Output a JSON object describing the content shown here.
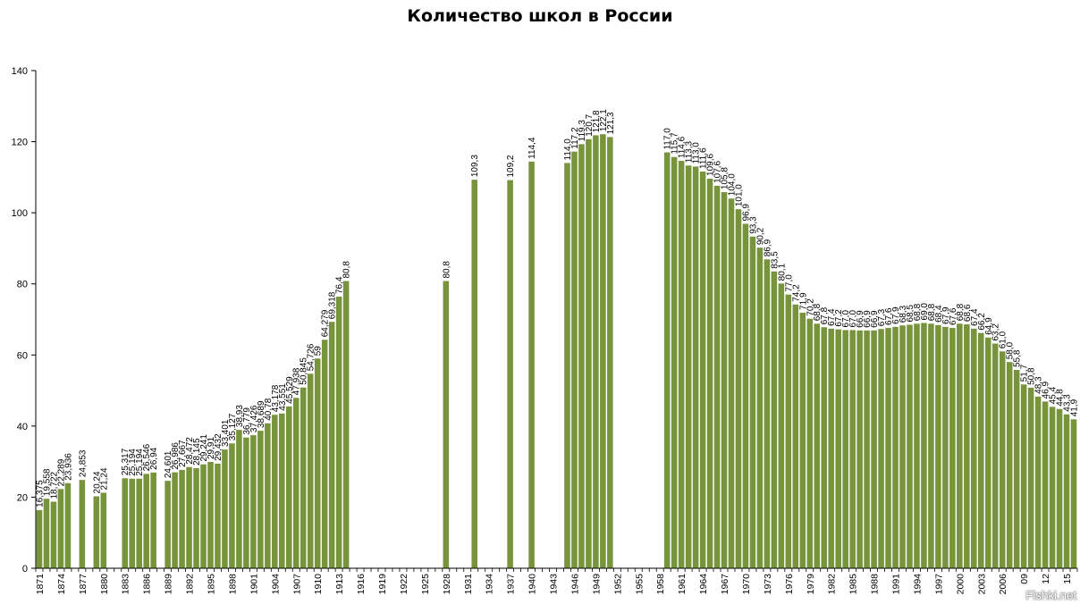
{
  "chart_data": {
    "type": "bar",
    "title": "Количество школ в России",
    "xlabel": "",
    "ylabel": "",
    "ylim": [
      0,
      140
    ],
    "yticks": [
      "0",
      "20",
      "40",
      "60",
      "80",
      "100",
      "120",
      "140"
    ],
    "ytick_values": [
      0,
      20,
      40,
      60,
      80,
      100,
      120,
      140
    ],
    "grid": false,
    "legend": "none",
    "bar_color": "#77933c",
    "xtick_labels": [
      "1871",
      "1874",
      "1877",
      "1880",
      "1883",
      "1886",
      "1889",
      "1892",
      "1895",
      "1898",
      "1901",
      "1904",
      "1907",
      "1910",
      "1913",
      "1916",
      "1919",
      "1922",
      "1925",
      "1928",
      "1931",
      "1934",
      "1937",
      "1940",
      "1943",
      "1946",
      "1949",
      "1952",
      "1955",
      "1958",
      "1961",
      "1964",
      "1967",
      "1970",
      "1973",
      "1976",
      "1979",
      "1982",
      "1985",
      "1988",
      "1991",
      "1994",
      "1997",
      "2000",
      "2003",
      "2006",
      "09",
      "12",
      "15"
    ],
    "xtick_years": [
      1871,
      1874,
      1877,
      1880,
      1883,
      1886,
      1889,
      1892,
      1895,
      1898,
      1901,
      1904,
      1907,
      1910,
      1913,
      1916,
      1919,
      1922,
      1925,
      1928,
      1931,
      1934,
      1937,
      1940,
      1943,
      1946,
      1949,
      1952,
      1955,
      1958,
      1961,
      1964,
      1967,
      1970,
      1973,
      1976,
      1979,
      1982,
      1985,
      1988,
      1991,
      1994,
      1997,
      2000,
      2003,
      2006,
      2009,
      2012,
      2015
    ],
    "first_year": 1871,
    "last_year": 2016,
    "points": [
      {
        "year": 1871,
        "value": 16.375,
        "label": "16,375"
      },
      {
        "year": 1872,
        "value": 19.558,
        "label": "19,558"
      },
      {
        "year": 1873,
        "value": 18.722,
        "label": "18,722"
      },
      {
        "year": 1874,
        "value": 22.289,
        "label": "22,289"
      },
      {
        "year": 1875,
        "value": 23.936,
        "label": "23,936"
      },
      {
        "year": 1877,
        "value": 24.853,
        "label": "24,853"
      },
      {
        "year": 1879,
        "value": 20.24,
        "label": "20,24"
      },
      {
        "year": 1880,
        "value": 21.24,
        "label": "21,24"
      },
      {
        "year": 1883,
        "value": 25.317,
        "label": "25,317"
      },
      {
        "year": 1884,
        "value": 25.194,
        "label": "25,194"
      },
      {
        "year": 1885,
        "value": 25.194,
        "label": "25,194"
      },
      {
        "year": 1886,
        "value": 26.546,
        "label": "26,546"
      },
      {
        "year": 1887,
        "value": 26.94,
        "label": "26,94"
      },
      {
        "year": 1889,
        "value": 24.601,
        "label": "24,601"
      },
      {
        "year": 1890,
        "value": 26.986,
        "label": "26,986"
      },
      {
        "year": 1891,
        "value": 27.667,
        "label": "27,667"
      },
      {
        "year": 1892,
        "value": 28.472,
        "label": "28,472"
      },
      {
        "year": 1893,
        "value": 28.145,
        "label": "28,145"
      },
      {
        "year": 1894,
        "value": 29.241,
        "label": "29,241"
      },
      {
        "year": 1895,
        "value": 29.91,
        "label": "29,91"
      },
      {
        "year": 1896,
        "value": 29.432,
        "label": "29,432"
      },
      {
        "year": 1897,
        "value": 33.401,
        "label": "33,401"
      },
      {
        "year": 1898,
        "value": 35.127,
        "label": "35,127"
      },
      {
        "year": 1899,
        "value": 38.93,
        "label": "38,93"
      },
      {
        "year": 1900,
        "value": 36.779,
        "label": "36,779"
      },
      {
        "year": 1901,
        "value": 37.426,
        "label": "37,426"
      },
      {
        "year": 1902,
        "value": 38.689,
        "label": "38,689"
      },
      {
        "year": 1903,
        "value": 40.78,
        "label": "40,78"
      },
      {
        "year": 1904,
        "value": 43.178,
        "label": "43,178"
      },
      {
        "year": 1905,
        "value": 43.551,
        "label": "43,551"
      },
      {
        "year": 1906,
        "value": 45.529,
        "label": "45,529"
      },
      {
        "year": 1907,
        "value": 47.938,
        "label": "47,938"
      },
      {
        "year": 1908,
        "value": 50.845,
        "label": "50,845"
      },
      {
        "year": 1909,
        "value": 54.726,
        "label": "54,726"
      },
      {
        "year": 1910,
        "value": 59,
        "label": "59"
      },
      {
        "year": 1911,
        "value": 64.279,
        "label": "64,279"
      },
      {
        "year": 1912,
        "value": 69.318,
        "label": "69,318"
      },
      {
        "year": 1913,
        "value": 76.4,
        "label": "76,4"
      },
      {
        "year": 1914,
        "value": 80.8,
        "label": "80,8"
      },
      {
        "year": 1928,
        "value": 80.8,
        "label": "80,8"
      },
      {
        "year": 1932,
        "value": 109.3,
        "label": "109,3"
      },
      {
        "year": 1937,
        "value": 109.2,
        "label": "109,2"
      },
      {
        "year": 1940,
        "value": 114.4,
        "label": "114,4"
      },
      {
        "year": 1945,
        "value": 114.0,
        "label": "114,0"
      },
      {
        "year": 1946,
        "value": 117.2,
        "label": "117,2"
      },
      {
        "year": 1947,
        "value": 119.3,
        "label": "119,3"
      },
      {
        "year": 1948,
        "value": 120.7,
        "label": "120,7"
      },
      {
        "year": 1949,
        "value": 121.8,
        "label": "121,8"
      },
      {
        "year": 1950,
        "value": 122.1,
        "label": "122,1"
      },
      {
        "year": 1951,
        "value": 121.3,
        "label": "121,3"
      },
      {
        "year": 1959,
        "value": 117.0,
        "label": "117,0"
      },
      {
        "year": 1960,
        "value": 115.7,
        "label": "115,7"
      },
      {
        "year": 1961,
        "value": 114.6,
        "label": "114,6"
      },
      {
        "year": 1962,
        "value": 113.3,
        "label": "113,3"
      },
      {
        "year": 1963,
        "value": 113.0,
        "label": "113,0"
      },
      {
        "year": 1964,
        "value": 111.6,
        "label": "111,6"
      },
      {
        "year": 1965,
        "value": 109.6,
        "label": "109,6"
      },
      {
        "year": 1966,
        "value": 107.6,
        "label": "107,6"
      },
      {
        "year": 1967,
        "value": 105.8,
        "label": "105,8"
      },
      {
        "year": 1968,
        "value": 104.0,
        "label": "104,0"
      },
      {
        "year": 1969,
        "value": 101.0,
        "label": "101,0"
      },
      {
        "year": 1970,
        "value": 96.9,
        "label": "96,9"
      },
      {
        "year": 1971,
        "value": 93.3,
        "label": "93,3"
      },
      {
        "year": 1972,
        "value": 90.2,
        "label": "90,2"
      },
      {
        "year": 1973,
        "value": 86.9,
        "label": "86,9"
      },
      {
        "year": 1974,
        "value": 83.5,
        "label": "83,5"
      },
      {
        "year": 1975,
        "value": 80.1,
        "label": "80,1"
      },
      {
        "year": 1976,
        "value": 77.0,
        "label": "77,0"
      },
      {
        "year": 1977,
        "value": 74.2,
        "label": "74,2"
      },
      {
        "year": 1978,
        "value": 71.9,
        "label": "71,9"
      },
      {
        "year": 1979,
        "value": 70.2,
        "label": "70,2"
      },
      {
        "year": 1980,
        "value": 68.8,
        "label": "68,8"
      },
      {
        "year": 1981,
        "value": 67.8,
        "label": "67,8"
      },
      {
        "year": 1982,
        "value": 67.4,
        "label": "67,4"
      },
      {
        "year": 1983,
        "value": 67.2,
        "label": "67,2"
      },
      {
        "year": 1984,
        "value": 67.0,
        "label": "67,0"
      },
      {
        "year": 1985,
        "value": 67.0,
        "label": "67,0"
      },
      {
        "year": 1986,
        "value": 66.9,
        "label": "66,9"
      },
      {
        "year": 1987,
        "value": 66.9,
        "label": "66,9"
      },
      {
        "year": 1988,
        "value": 66.9,
        "label": "66,9"
      },
      {
        "year": 1989,
        "value": 67.3,
        "label": "67,3"
      },
      {
        "year": 1990,
        "value": 67.6,
        "label": "67,6"
      },
      {
        "year": 1991,
        "value": 67.9,
        "label": "67,9"
      },
      {
        "year": 1992,
        "value": 68.3,
        "label": "68,3"
      },
      {
        "year": 1993,
        "value": 68.5,
        "label": "68,5"
      },
      {
        "year": 1994,
        "value": 68.8,
        "label": "68,8"
      },
      {
        "year": 1995,
        "value": 69.0,
        "label": "69,0"
      },
      {
        "year": 1996,
        "value": 68.8,
        "label": "68,8"
      },
      {
        "year": 1997,
        "value": 68.4,
        "label": "68,4"
      },
      {
        "year": 1998,
        "value": 67.9,
        "label": "67,9"
      },
      {
        "year": 1999,
        "value": 67.6,
        "label": "67,6"
      },
      {
        "year": 2000,
        "value": 68.8,
        "label": "68,8"
      },
      {
        "year": 2001,
        "value": 68.6,
        "label": "68,6"
      },
      {
        "year": 2002,
        "value": 67.4,
        "label": "67,4"
      },
      {
        "year": 2003,
        "value": 66.2,
        "label": "66,2"
      },
      {
        "year": 2004,
        "value": 64.9,
        "label": "64,9"
      },
      {
        "year": 2005,
        "value": 63.2,
        "label": "63,2"
      },
      {
        "year": 2006,
        "value": 61.0,
        "label": "61,0"
      },
      {
        "year": 2007,
        "value": 58.0,
        "label": "58,0"
      },
      {
        "year": 2008,
        "value": 55.8,
        "label": "55,8"
      },
      {
        "year": 2009,
        "value": 51.7,
        "label": "51,7"
      },
      {
        "year": 2010,
        "value": 50.8,
        "label": "50,8"
      },
      {
        "year": 2011,
        "value": 48.3,
        "label": "48,3"
      },
      {
        "year": 2012,
        "value": 46.9,
        "label": "46,9"
      },
      {
        "year": 2013,
        "value": 45.4,
        "label": "45,4"
      },
      {
        "year": 2014,
        "value": 44.8,
        "label": "44,8"
      },
      {
        "year": 2015,
        "value": 43.3,
        "label": "43,3"
      },
      {
        "year": 2016,
        "value": 41.9,
        "label": "41,9"
      }
    ]
  },
  "watermark": "Fishki.net"
}
